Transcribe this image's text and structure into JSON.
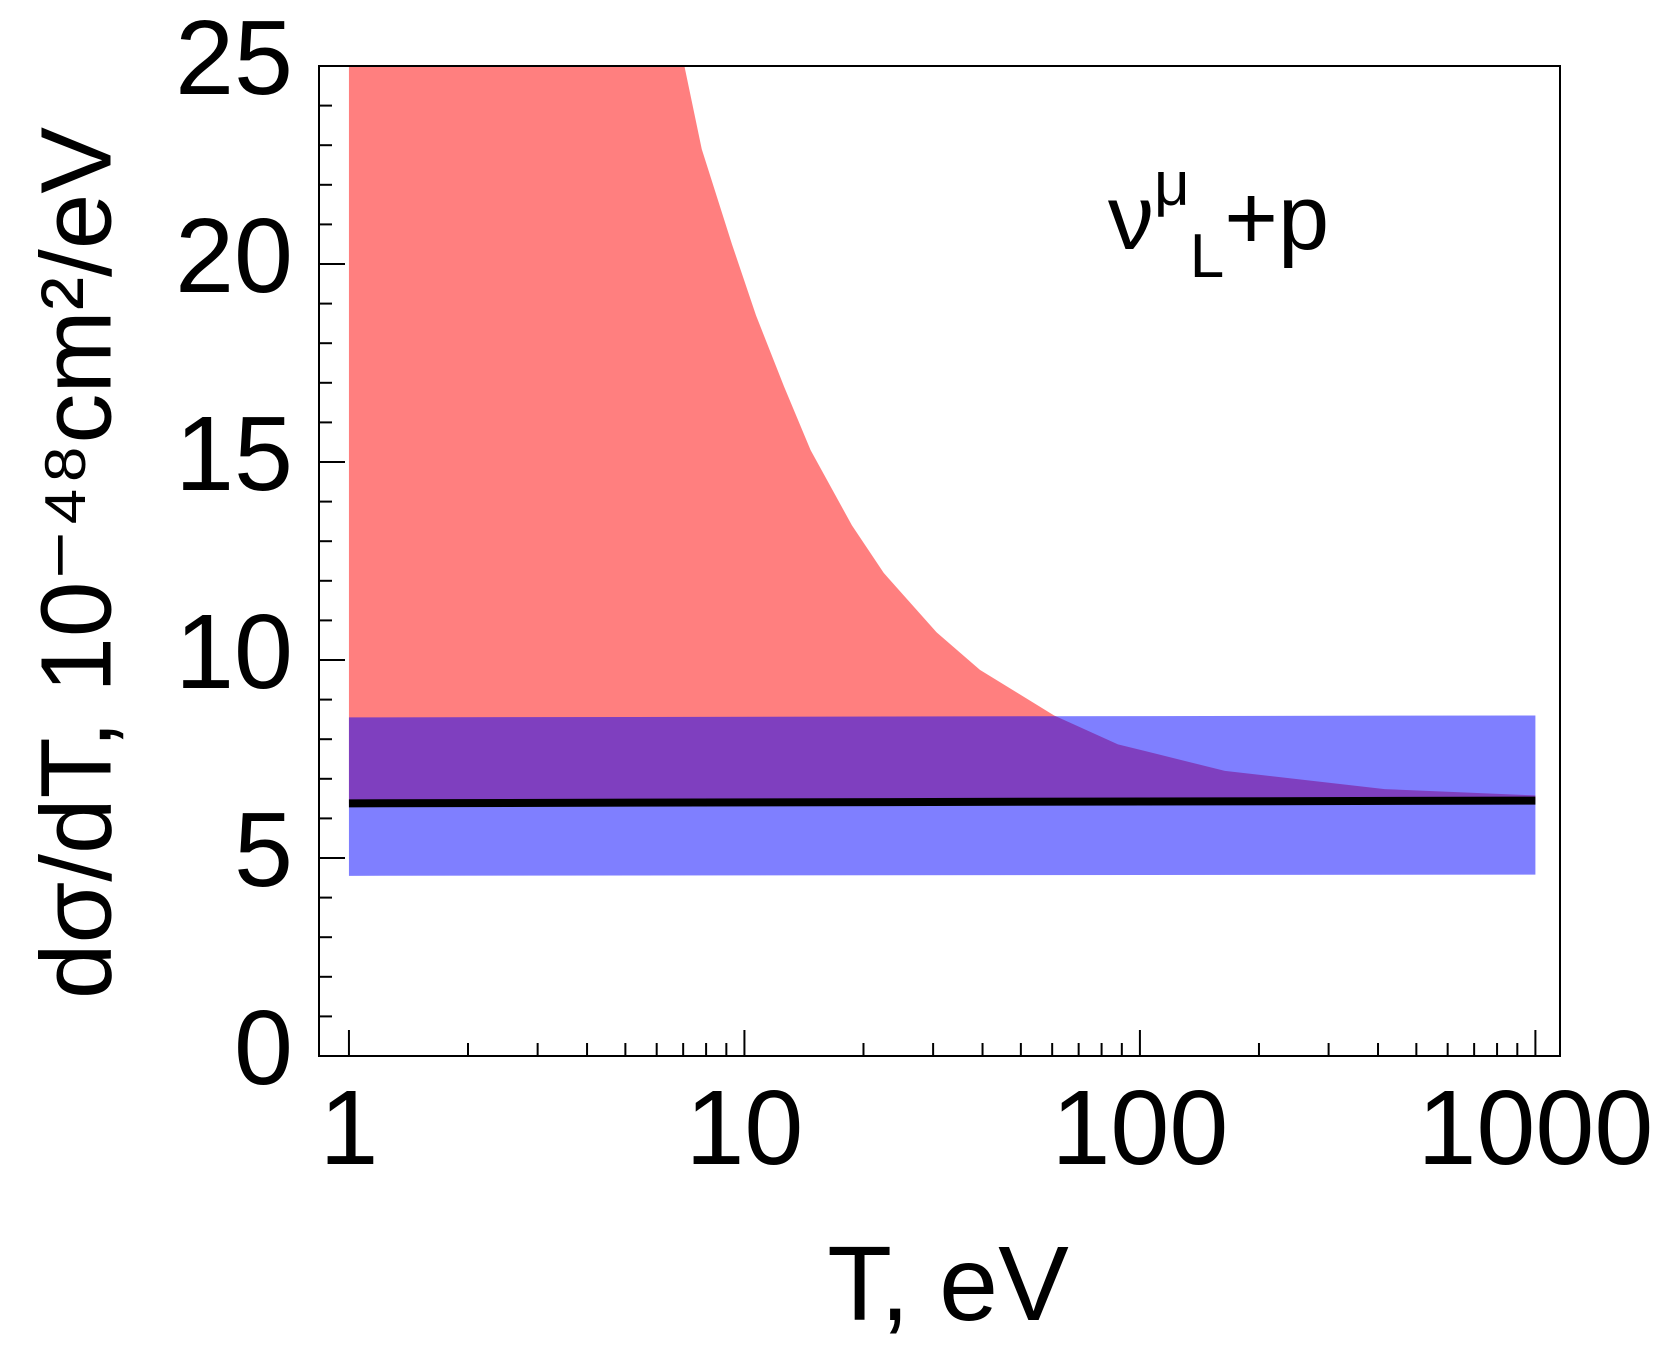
{
  "chart_data": {
    "type": "band",
    "xlabel": "T, eV",
    "ylabel": "dσ/dT, 10⁻⁴⁸cm²/eV",
    "annotation": {
      "base": "ν",
      "sup": "μ",
      "sub": "L",
      "rest": "+p"
    },
    "xscale": "log",
    "xlim": [
      0.84,
      1154
    ],
    "ylim": [
      0,
      25
    ],
    "xticks": [
      1,
      10,
      100,
      1000
    ],
    "yticks": [
      0,
      5,
      10,
      15,
      20,
      25
    ],
    "xminorticks": [
      2,
      3,
      4,
      5,
      6,
      7,
      8,
      9,
      20,
      30,
      40,
      50,
      60,
      70,
      80,
      90,
      200,
      300,
      400,
      500,
      600,
      700,
      800,
      900
    ],
    "yminorticks": [
      1,
      2,
      3,
      4,
      6,
      7,
      8,
      9,
      11,
      12,
      13,
      14,
      16,
      17,
      18,
      19,
      21,
      22,
      23,
      24
    ],
    "series": [
      {
        "color": "#ff0000",
        "opacity": 0.5,
        "x": [
          1,
          7.05,
          7.8,
          9.3,
          10.7,
          12.6,
          14.7,
          18.7,
          22.5,
          30.6,
          39.4,
          60.7,
          88,
          164,
          416,
          1000
        ],
        "upper": [
          25,
          25,
          22.9,
          20.5,
          18.7,
          16.9,
          15.3,
          13.4,
          12.2,
          10.7,
          9.75,
          8.6,
          7.87,
          7.2,
          6.74,
          6.58
        ],
        "lower": [
          6.38,
          6.38,
          6.38,
          6.38,
          6.38,
          6.38,
          6.38,
          6.38,
          6.38,
          6.38,
          6.39,
          6.39,
          6.4,
          6.41,
          6.43,
          6.45
        ]
      },
      {
        "color": "#0000ff",
        "opacity": 0.5,
        "x": [
          1,
          1000
        ],
        "upper": [
          8.55,
          8.6
        ],
        "lower": [
          4.55,
          4.58
        ]
      },
      {
        "color": "#000000",
        "width": 8,
        "x": [
          1,
          1000
        ],
        "values": [
          6.38,
          6.45
        ]
      }
    ]
  }
}
